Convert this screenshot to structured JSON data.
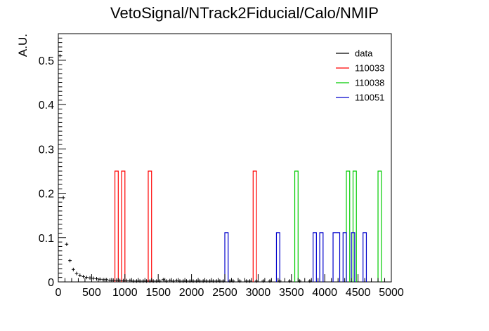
{
  "chart_data": {
    "type": "histogram",
    "title": "VetoSignal/NTrack2Fiducial/Calo/NMIP",
    "xlabel": "",
    "ylabel": "A.U.",
    "xlim": [
      0,
      5000
    ],
    "ylim": [
      0,
      0.56
    ],
    "grid": false,
    "legend_position": "top-right",
    "x_ticks": [
      "0",
      "500",
      "1000",
      "1500",
      "2000",
      "2500",
      "3000",
      "3500",
      "4000",
      "4500",
      "5000"
    ],
    "y_ticks": [
      "0",
      "0.1",
      "0.2",
      "0.3",
      "0.4",
      "0.5"
    ],
    "bin_width": 50,
    "series": [
      {
        "name": "data",
        "color": "#000000",
        "style": "markers",
        "x": [
          25,
          75,
          125,
          175,
          225,
          275,
          325,
          375,
          425,
          475,
          525,
          575,
          625,
          675,
          725,
          775,
          825,
          875,
          925,
          975,
          1025,
          1075,
          1125,
          1175,
          1225,
          1275,
          1325,
          1375,
          1425,
          1475,
          1525,
          1575,
          1625,
          1675,
          1725,
          1775,
          1825,
          1875,
          1925,
          1975,
          2025,
          2075,
          2125,
          2175,
          2225,
          2275,
          2325,
          2375,
          2425,
          2475,
          2575,
          2625,
          2725,
          2825,
          2875,
          2975,
          3075,
          3175,
          3325,
          3475,
          3625,
          3775
        ],
        "values": [
          0.51,
          0.19,
          0.085,
          0.048,
          0.028,
          0.019,
          0.015,
          0.012,
          0.01,
          0.009,
          0.008,
          0.007,
          0.006,
          0.005,
          0.005,
          0.004,
          0.004,
          0.004,
          0.003,
          0.003,
          0.003,
          0.003,
          0.002,
          0.002,
          0.002,
          0.002,
          0.002,
          0.002,
          0.002,
          0.002,
          0.002,
          0.005,
          0.002,
          0.003,
          0.002,
          0.003,
          0.002,
          0.002,
          0.002,
          0.002,
          0.002,
          0.002,
          0.002,
          0.002,
          0.002,
          0.002,
          0.002,
          0.002,
          0.002,
          0.002,
          0.002,
          0.002,
          0.002,
          0.002,
          0.002,
          0.002,
          0.002,
          0.002,
          0.002,
          0.002,
          0.002,
          0.002
        ]
      },
      {
        "name": "110033",
        "color": "#ff0000",
        "style": "step",
        "bins": [
          [
            850,
            900,
            0.25
          ],
          [
            950,
            1000,
            0.25
          ],
          [
            1350,
            1400,
            0.25
          ],
          [
            2925,
            2975,
            0.25
          ]
        ]
      },
      {
        "name": "110038",
        "color": "#00cc00",
        "style": "step",
        "bins": [
          [
            3550,
            3600,
            0.25
          ],
          [
            4325,
            4375,
            0.25
          ],
          [
            4425,
            4475,
            0.25
          ],
          [
            4800,
            4850,
            0.25
          ]
        ]
      },
      {
        "name": "110051",
        "color": "#0000cc",
        "style": "step",
        "bins": [
          [
            2500,
            2550,
            0.111
          ],
          [
            3275,
            3325,
            0.111
          ],
          [
            3825,
            3875,
            0.111
          ],
          [
            3925,
            3975,
            0.111
          ],
          [
            4125,
            4225,
            0.111
          ],
          [
            4275,
            4325,
            0.111
          ],
          [
            4400,
            4450,
            0.111
          ],
          [
            4575,
            4625,
            0.111
          ]
        ]
      }
    ]
  }
}
